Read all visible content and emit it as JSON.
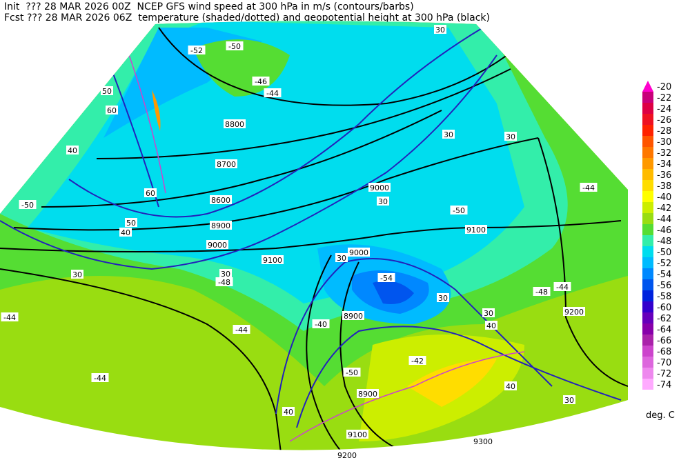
{
  "header": {
    "line1": "Init  ??? 28 MAR 2026 00Z  NCEP GFS wind speed at 300 hPa in m/s (contours/barbs)",
    "line2": "Fcst ??? 28 MAR 2026 06Z  temperature (shaded/dotted) and geopotential height at 300 hPa (black)"
  },
  "colorbar": {
    "unit": "deg. C",
    "levels": [
      {
        "value": -20,
        "color": "#ff00cc"
      },
      {
        "value": -22,
        "color": "#c8007a"
      },
      {
        "value": -24,
        "color": "#dd0044"
      },
      {
        "value": -26,
        "color": "#ee1122"
      },
      {
        "value": -28,
        "color": "#ff2200"
      },
      {
        "value": -30,
        "color": "#ff5500"
      },
      {
        "value": -32,
        "color": "#ff7700"
      },
      {
        "value": -34,
        "color": "#ff9900"
      },
      {
        "value": -36,
        "color": "#ffbb00"
      },
      {
        "value": -38,
        "color": "#ffdd00"
      },
      {
        "value": -40,
        "color": "#ffff00"
      },
      {
        "value": -42,
        "color": "#ccee00"
      },
      {
        "value": -44,
        "color": "#99dd11"
      },
      {
        "value": -46,
        "color": "#55dd33"
      },
      {
        "value": -48,
        "color": "#33eeaa"
      },
      {
        "value": -50,
        "color": "#00ddee"
      },
      {
        "value": -52,
        "color": "#00bbff"
      },
      {
        "value": -54,
        "color": "#0088ff"
      },
      {
        "value": -56,
        "color": "#0055ee"
      },
      {
        "value": -58,
        "color": "#0022dd"
      },
      {
        "value": -60,
        "color": "#3300cc"
      },
      {
        "value": -62,
        "color": "#6600bb"
      },
      {
        "value": -64,
        "color": "#8800aa"
      },
      {
        "value": -66,
        "color": "#aa22aa"
      },
      {
        "value": -68,
        "color": "#cc44cc"
      },
      {
        "value": -70,
        "color": "#dd66dd"
      },
      {
        "value": -72,
        "color": "#ee88ee"
      },
      {
        "value": -74,
        "color": "#ffaaff"
      }
    ]
  },
  "map_labels": [
    -52,
    -50,
    -46,
    -44,
    8800,
    8700,
    8600,
    8900,
    9000,
    9100,
    9000,
    30,
    9100,
    9200,
    9000,
    8900,
    8900,
    9100,
    9200,
    9300,
    30,
    30,
    30,
    30,
    30,
    40,
    40,
    60,
    60,
    50,
    50,
    -50,
    -44,
    -44,
    -44,
    -48,
    -50,
    -48,
    -44,
    -42,
    -44,
    -54,
    30,
    30,
    40,
    40,
    30,
    40,
    30,
    -50,
    -40
  ]
}
